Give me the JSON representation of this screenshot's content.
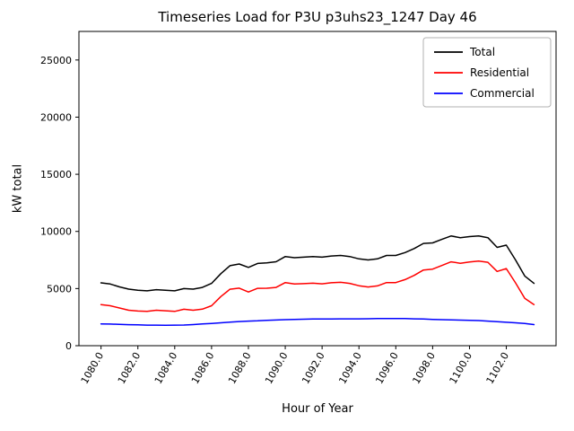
{
  "title": "Timeseries Load for P3U p3uhs23_1247  Day 46",
  "chart_data": {
    "type": "line",
    "title": "Timeseries Load for P3U p3uhs23_1247  Day 46",
    "xlabel": "Hour of Year",
    "ylabel": "kW total",
    "grid": false,
    "legend_position": "upper right",
    "xlim": [
      1078.8,
      1104.7
    ],
    "ylim": [
      0,
      27500
    ],
    "xtick_values": [
      1080,
      1082,
      1084,
      1086,
      1088,
      1090,
      1092,
      1094,
      1096,
      1098,
      1100,
      1102
    ],
    "xtick_labels": [
      "1080.0",
      "1082.0",
      "1084.0",
      "1086.0",
      "1088.0",
      "1090.0",
      "1092.0",
      "1094.0",
      "1096.0",
      "1098.0",
      "1100.0",
      "1102.0"
    ],
    "ytick_values": [
      0,
      5000,
      10000,
      15000,
      20000,
      25000
    ],
    "ytick_labels": [
      "0",
      "5000",
      "10000",
      "15000",
      "20000",
      "25000"
    ],
    "x": [
      1080.0,
      1080.5,
      1081.0,
      1081.5,
      1082.0,
      1082.5,
      1083.0,
      1083.5,
      1084.0,
      1084.5,
      1085.0,
      1085.5,
      1086.0,
      1086.5,
      1087.0,
      1087.5,
      1088.0,
      1088.5,
      1089.0,
      1089.5,
      1090.0,
      1090.5,
      1091.0,
      1091.5,
      1092.0,
      1092.5,
      1093.0,
      1093.5,
      1094.0,
      1094.5,
      1095.0,
      1095.5,
      1096.0,
      1096.5,
      1097.0,
      1097.5,
      1098.0,
      1098.5,
      1099.0,
      1099.5,
      1100.0,
      1100.5,
      1101.0,
      1101.5,
      1102.0,
      1102.5,
      1103.0,
      1103.5
    ],
    "series": [
      {
        "name": "Total",
        "color": "#000000",
        "values": [
          5500,
          5400,
          5150,
          4950,
          4850,
          4800,
          4900,
          4850,
          4800,
          5000,
          4950,
          5100,
          5450,
          6300,
          7000,
          7150,
          6850,
          7200,
          7250,
          7350,
          7800,
          7700,
          7750,
          7800,
          7750,
          7850,
          7900,
          7800,
          7600,
          7500,
          7600,
          7900,
          7900,
          8150,
          8500,
          8950,
          9000,
          9300,
          9600,
          9450,
          9550,
          9600,
          9450,
          8600,
          8800,
          7500,
          6100,
          5450
        ]
      },
      {
        "name": "Residential",
        "color": "#ff0000",
        "values": [
          3600,
          3500,
          3300,
          3100,
          3030,
          3000,
          3100,
          3060,
          3000,
          3190,
          3100,
          3200,
          3500,
          4300,
          4940,
          5040,
          4700,
          5020,
          5030,
          5100,
          5520,
          5400,
          5430,
          5470,
          5410,
          5510,
          5550,
          5450,
          5250,
          5140,
          5230,
          5520,
          5520,
          5780,
          6150,
          6620,
          6700,
          7020,
          7340,
          7210,
          7330,
          7400,
          7300,
          6500,
          6750,
          5500,
          4150,
          3600
        ]
      },
      {
        "name": "Commercial",
        "color": "#0000ff",
        "values": [
          1900,
          1890,
          1860,
          1840,
          1820,
          1800,
          1800,
          1790,
          1800,
          1810,
          1850,
          1900,
          1950,
          2000,
          2060,
          2110,
          2150,
          2180,
          2220,
          2250,
          2280,
          2300,
          2320,
          2330,
          2340,
          2340,
          2350,
          2350,
          2350,
          2360,
          2370,
          2380,
          2380,
          2370,
          2350,
          2330,
          2300,
          2280,
          2260,
          2240,
          2220,
          2200,
          2150,
          2100,
          2050,
          2000,
          1950,
          1850
        ]
      }
    ]
  }
}
